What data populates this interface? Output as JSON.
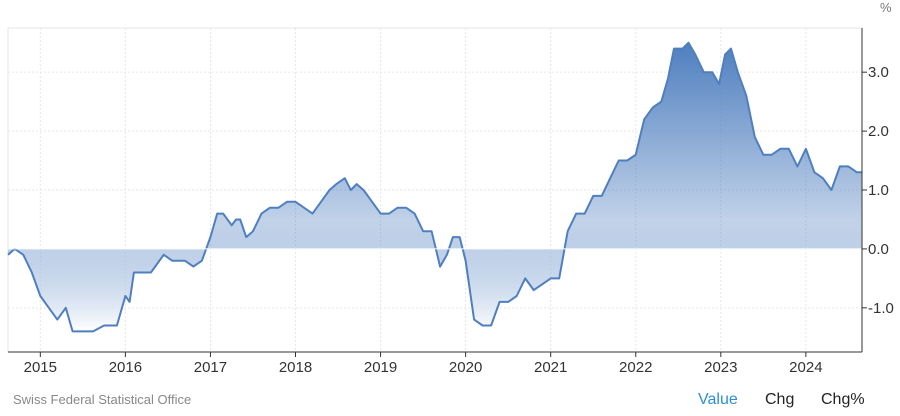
{
  "source": "Swiss Federal Statistical Office",
  "controls": {
    "value_label": "Value",
    "chg_label": "Chg",
    "chgpct_label": "Chg%",
    "active": "Value"
  },
  "colors": {
    "line": "#4f7fbf",
    "fill_top": "#4f7fbf",
    "fill_bottom": "#ffffff",
    "grid": "#e6e6e6",
    "active_toggle": "#2c8fd6"
  },
  "chart_data": {
    "type": "area",
    "unit": "%",
    "ylim": [
      -1.75,
      3.75
    ],
    "yticks": [
      3.0,
      2.0,
      1.0,
      0.0,
      -1.0
    ],
    "ytick_labels": [
      "3.0",
      "2.0",
      "1.0",
      "0.0",
      "-1.0"
    ],
    "xlim": [
      2014.62,
      2024.66
    ],
    "xticks": [
      2015,
      2016,
      2017,
      2018,
      2019,
      2020,
      2021,
      2022,
      2023,
      2024
    ],
    "xtick_labels": [
      "2015",
      "2016",
      "2017",
      "2018",
      "2019",
      "2020",
      "2021",
      "2022",
      "2023",
      "2024"
    ],
    "grid": true,
    "x": [
      2014.62,
      2014.7,
      2014.8,
      2014.9,
      2015.0,
      2015.1,
      2015.2,
      2015.3,
      2015.38,
      2015.46,
      2015.55,
      2015.62,
      2015.75,
      2015.9,
      2016.0,
      2016.05,
      2016.1,
      2016.15,
      2016.22,
      2016.3,
      2016.45,
      2016.55,
      2016.62,
      2016.7,
      2016.8,
      2016.9,
      2017.0,
      2017.08,
      2017.15,
      2017.25,
      2017.3,
      2017.35,
      2017.42,
      2017.5,
      2017.6,
      2017.7,
      2017.8,
      2017.9,
      2018.0,
      2018.1,
      2018.2,
      2018.3,
      2018.4,
      2018.48,
      2018.58,
      2018.65,
      2018.72,
      2018.8,
      2018.9,
      2019.0,
      2019.1,
      2019.2,
      2019.3,
      2019.4,
      2019.5,
      2019.6,
      2019.7,
      2019.78,
      2019.85,
      2019.93,
      2020.0,
      2020.1,
      2020.2,
      2020.3,
      2020.4,
      2020.5,
      2020.6,
      2020.7,
      2020.8,
      2020.9,
      2021.0,
      2021.1,
      2021.2,
      2021.3,
      2021.4,
      2021.5,
      2021.6,
      2021.7,
      2021.8,
      2021.9,
      2022.0,
      2022.1,
      2022.2,
      2022.3,
      2022.38,
      2022.45,
      2022.55,
      2022.62,
      2022.7,
      2022.8,
      2022.9,
      2022.98,
      2023.05,
      2023.12,
      2023.2,
      2023.3,
      2023.4,
      2023.5,
      2023.6,
      2023.7,
      2023.8,
      2023.9,
      2024.0,
      2024.1,
      2024.2,
      2024.3,
      2024.4,
      2024.5,
      2024.6,
      2024.66
    ],
    "y": [
      -0.1,
      0.0,
      -0.1,
      -0.4,
      -0.8,
      -1.0,
      -1.2,
      -1.0,
      -1.4,
      -1.4,
      -1.4,
      -1.4,
      -1.3,
      -1.3,
      -0.8,
      -0.9,
      -0.4,
      -0.4,
      -0.4,
      -0.4,
      -0.1,
      -0.2,
      -0.2,
      -0.2,
      -0.3,
      -0.2,
      0.2,
      0.6,
      0.6,
      0.4,
      0.5,
      0.5,
      0.2,
      0.3,
      0.6,
      0.7,
      0.7,
      0.8,
      0.8,
      0.7,
      0.6,
      0.8,
      1.0,
      1.1,
      1.2,
      1.0,
      1.1,
      1.0,
      0.8,
      0.6,
      0.6,
      0.7,
      0.7,
      0.6,
      0.3,
      0.3,
      -0.3,
      -0.1,
      0.2,
      0.2,
      -0.2,
      -1.2,
      -1.3,
      -1.3,
      -0.9,
      -0.9,
      -0.8,
      -0.5,
      -0.7,
      -0.6,
      -0.5,
      -0.5,
      0.3,
      0.6,
      0.6,
      0.9,
      0.9,
      1.2,
      1.5,
      1.5,
      1.6,
      2.2,
      2.4,
      2.5,
      2.9,
      3.4,
      3.4,
      3.5,
      3.3,
      3.0,
      3.0,
      2.8,
      3.3,
      3.4,
      3.0,
      2.6,
      1.9,
      1.6,
      1.6,
      1.7,
      1.7,
      1.4,
      1.7,
      1.3,
      1.2,
      1.0,
      1.4,
      1.4,
      1.3,
      1.3
    ]
  }
}
